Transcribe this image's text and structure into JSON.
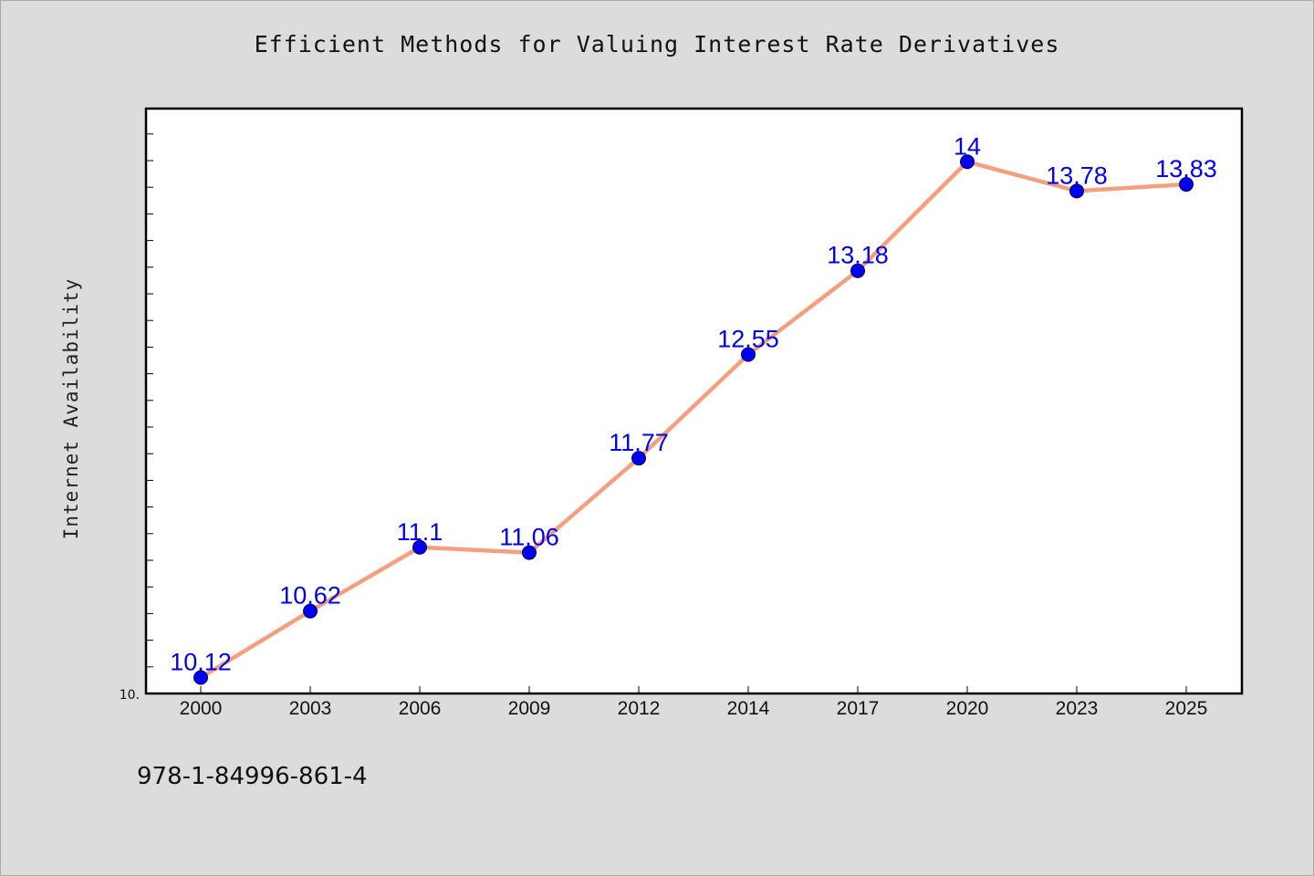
{
  "chart_data": {
    "type": "line",
    "title": "Efficient Methods for Valuing Interest Rate Derivatives",
    "ylabel": "Internet Availability",
    "xlabel": "",
    "x": [
      "2000",
      "2003",
      "2006",
      "2009",
      "2012",
      "2014",
      "2017",
      "2020",
      "2023",
      "2025"
    ],
    "series": [
      {
        "values": [
          10.12,
          10.62,
          11.1,
          11.06,
          11.77,
          12.55,
          13.18,
          14,
          13.78,
          13.83
        ],
        "labels": [
          "10.12",
          "10.62",
          "11.1",
          "11.06",
          "11.77",
          "12.55",
          "13.18",
          "14",
          "13.78",
          "13.83"
        ]
      }
    ],
    "ylim": [
      10.0,
      14.4
    ],
    "y_tick_label": "10.",
    "grid": false,
    "line_color": "#f4a07e",
    "marker_color": "#0000ee",
    "label_color": "#0000ee"
  },
  "footer": {
    "isbn": "978-1-84996-861-4"
  }
}
